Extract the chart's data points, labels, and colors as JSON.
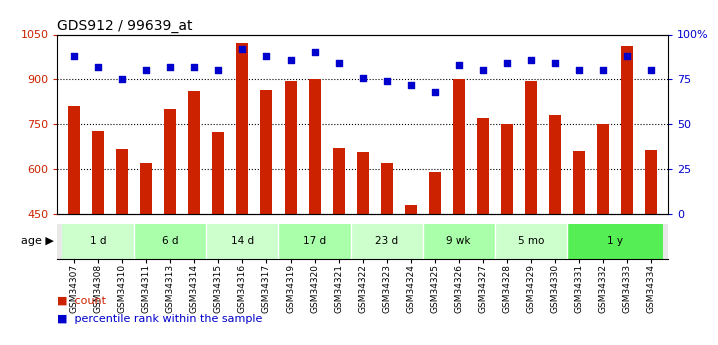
{
  "title": "GDS912 / 99639_at",
  "samples": [
    "GSM34307",
    "GSM34308",
    "GSM34310",
    "GSM34311",
    "GSM34313",
    "GSM34314",
    "GSM34315",
    "GSM34316",
    "GSM34317",
    "GSM34319",
    "GSM34320",
    "GSM34321",
    "GSM34322",
    "GSM34323",
    "GSM34324",
    "GSM34325",
    "GSM34326",
    "GSM34327",
    "GSM34328",
    "GSM34329",
    "GSM34330",
    "GSM34331",
    "GSM34332",
    "GSM34333",
    "GSM34334"
  ],
  "counts": [
    810,
    728,
    668,
    620,
    800,
    862,
    725,
    1020,
    865,
    895,
    900,
    670,
    658,
    620,
    480,
    590,
    900,
    770,
    750,
    895,
    780,
    660,
    750,
    1010,
    665
  ],
  "percentiles": [
    88,
    82,
    75,
    80,
    82,
    82,
    80,
    92,
    88,
    86,
    90,
    84,
    76,
    74,
    72,
    68,
    83,
    80,
    84,
    86,
    84,
    80,
    80,
    88,
    80
  ],
  "age_groups": [
    {
      "label": "1 d",
      "start": 0,
      "end": 3,
      "color": "#ccffcc"
    },
    {
      "label": "6 d",
      "start": 3,
      "end": 6,
      "color": "#aaffaa"
    },
    {
      "label": "14 d",
      "start": 6,
      "end": 9,
      "color": "#ccffcc"
    },
    {
      "label": "17 d",
      "start": 9,
      "end": 12,
      "color": "#aaffaa"
    },
    {
      "label": "23 d",
      "start": 12,
      "end": 15,
      "color": "#ccffcc"
    },
    {
      "label": "9 wk",
      "start": 15,
      "end": 18,
      "color": "#aaffaa"
    },
    {
      "label": "5 mo",
      "start": 18,
      "end": 21,
      "color": "#ccffcc"
    },
    {
      "label": "1 y",
      "start": 21,
      "end": 25,
      "color": "#55ee55"
    }
  ],
  "ylim_left": [
    450,
    1050
  ],
  "ylim_right": [
    0,
    100
  ],
  "yticks_left": [
    450,
    600,
    750,
    900,
    1050
  ],
  "yticks_right": [
    0,
    25,
    50,
    75,
    100
  ],
  "ytick_labels_right": [
    "0",
    "25",
    "50",
    "75",
    "100%"
  ],
  "bar_color": "#cc2200",
  "dot_color": "#0000cc",
  "bar_width": 0.5
}
